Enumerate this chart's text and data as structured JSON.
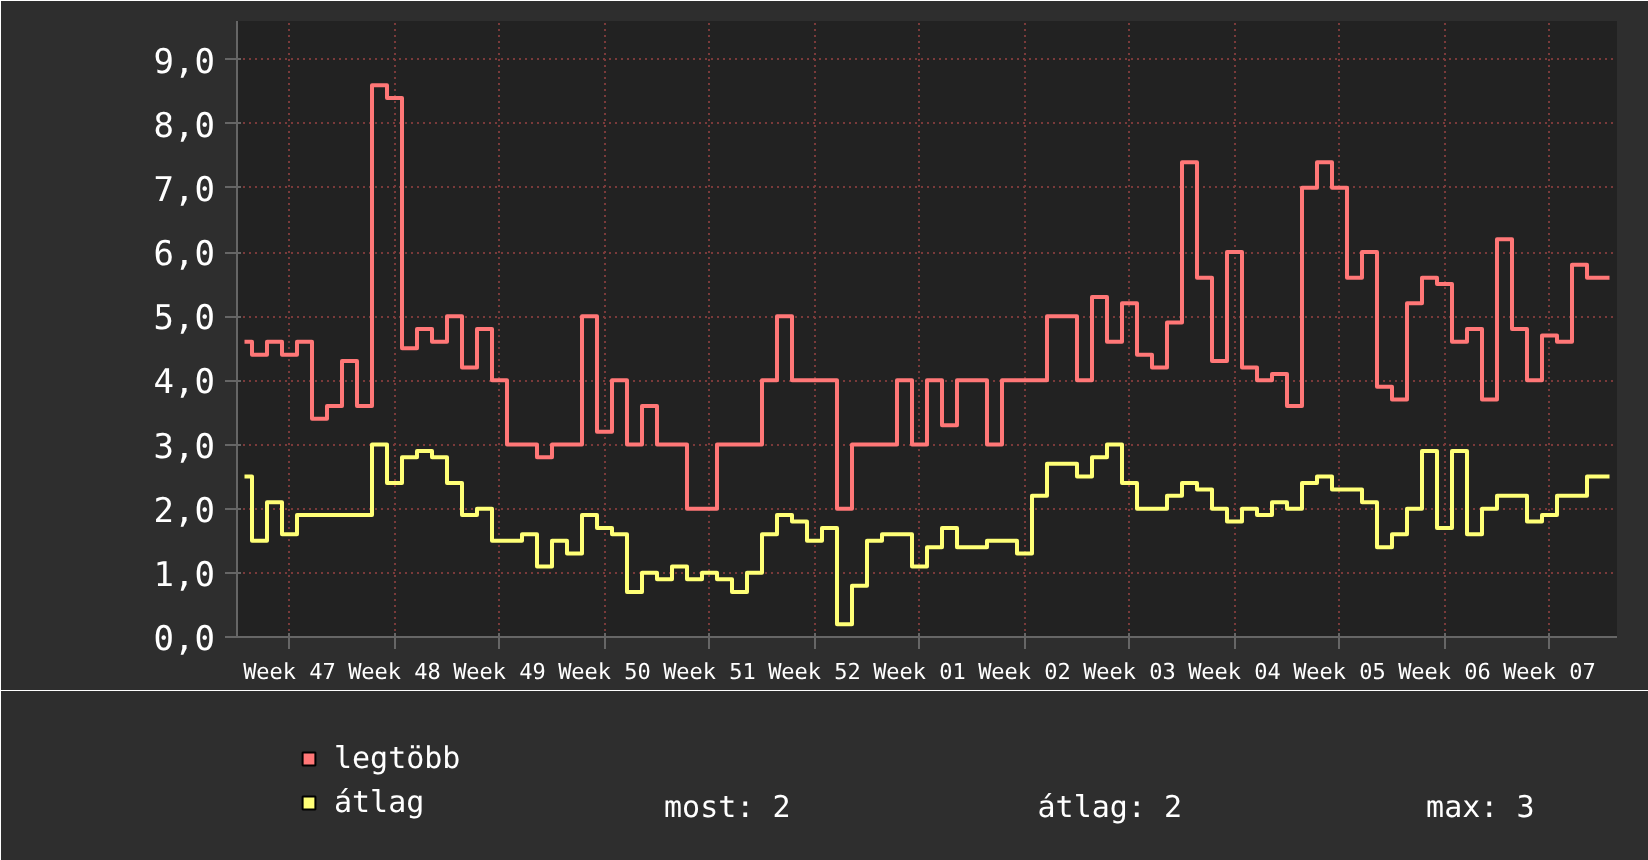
{
  "chart_data": {
    "type": "step",
    "categories": [
      null,
      null,
      null,
      "Week 47",
      null,
      null,
      null,
      null,
      null,
      null,
      "Week 48",
      null,
      null,
      null,
      null,
      null,
      null,
      "Week 49",
      null,
      null,
      null,
      null,
      null,
      null,
      "Week 50",
      null,
      null,
      null,
      null,
      null,
      null,
      "Week 51",
      null,
      null,
      null,
      null,
      null,
      null,
      "Week 52",
      null,
      null,
      null,
      null,
      null,
      null,
      "Week 01",
      null,
      null,
      null,
      null,
      null,
      null,
      "Week 02",
      null,
      null,
      null,
      null,
      null,
      null,
      "Week 03",
      null,
      null,
      null,
      null,
      null,
      null,
      "Week 04",
      null,
      null,
      null,
      null,
      null,
      null,
      "Week 05",
      null,
      null,
      null,
      null,
      null,
      null,
      "Week 06",
      null,
      null,
      null,
      null,
      null,
      null,
      "Week 07",
      null,
      null,
      null,
      null
    ],
    "series": [
      {
        "name": "legtöbb",
        "color": "#ff7777",
        "values": [
          4.6,
          4.4,
          4.6,
          4.4,
          4.6,
          3.4,
          3.6,
          4.3,
          3.6,
          8.6,
          8.4,
          4.5,
          4.8,
          4.6,
          5.0,
          4.2,
          4.8,
          4.0,
          3.0,
          3.0,
          2.8,
          3.0,
          3.0,
          5.0,
          3.2,
          4.0,
          3.0,
          3.6,
          3.0,
          3.0,
          2.0,
          2.0,
          3.0,
          3.0,
          3.0,
          4.0,
          5.0,
          4.0,
          4.0,
          4.0,
          2.0,
          3.0,
          3.0,
          3.0,
          4.0,
          3.0,
          4.0,
          3.3,
          4.0,
          4.0,
          3.0,
          4.0,
          4.0,
          4.0,
          5.0,
          5.0,
          4.0,
          5.3,
          4.6,
          5.2,
          4.4,
          4.2,
          4.9,
          7.4,
          5.6,
          4.3,
          6.0,
          4.2,
          4.0,
          4.1,
          3.6,
          7.0,
          7.4,
          7.0,
          5.6,
          6.0,
          3.9,
          3.7,
          5.2,
          5.6,
          5.5,
          4.6,
          4.8,
          3.7,
          6.2,
          4.8,
          4.0,
          4.7,
          4.6,
          5.8,
          5.6,
          5.6
        ]
      },
      {
        "name": "átlag",
        "color": "#ffff77",
        "values": [
          2.5,
          1.5,
          2.1,
          1.6,
          1.9,
          1.9,
          1.9,
          1.9,
          1.9,
          3.0,
          2.4,
          2.8,
          2.9,
          2.8,
          2.4,
          1.9,
          2.0,
          1.5,
          1.5,
          1.6,
          1.1,
          1.5,
          1.3,
          1.9,
          1.7,
          1.6,
          0.7,
          1.0,
          0.9,
          1.1,
          0.9,
          1.0,
          0.9,
          0.7,
          1.0,
          1.6,
          1.9,
          1.8,
          1.5,
          1.7,
          0.2,
          0.8,
          1.5,
          1.6,
          1.6,
          1.1,
          1.4,
          1.7,
          1.4,
          1.4,
          1.5,
          1.5,
          1.3,
          2.2,
          2.7,
          2.7,
          2.5,
          2.8,
          3.0,
          2.4,
          2.0,
          2.0,
          2.2,
          2.4,
          2.3,
          2.0,
          1.8,
          2.0,
          1.9,
          2.1,
          2.0,
          2.4,
          2.5,
          2.3,
          2.3,
          2.1,
          1.4,
          1.6,
          2.0,
          2.9,
          1.7,
          2.9,
          1.6,
          2.0,
          2.2,
          2.2,
          1.8,
          1.9,
          2.2,
          2.2,
          2.5,
          2.5
        ]
      }
    ],
    "ylim": [
      0,
      9.6
    ],
    "yticks": [
      {
        "value": 0,
        "label": "0,0"
      },
      {
        "value": 1,
        "label": "1,0"
      },
      {
        "value": 2,
        "label": "2,0"
      },
      {
        "value": 3,
        "label": "3,0"
      },
      {
        "value": 4,
        "label": "4,0"
      },
      {
        "value": 5,
        "label": "5,0"
      },
      {
        "value": 6,
        "label": "6,0"
      },
      {
        "value": 7,
        "label": "7,0"
      },
      {
        "value": 8,
        "label": "8,0"
      },
      {
        "value": 9,
        "label": "9,0"
      }
    ],
    "grid": true,
    "legend": "bottom",
    "annotations": [
      "most: 2",
      "átlag: 2",
      "max: 3"
    ]
  }
}
